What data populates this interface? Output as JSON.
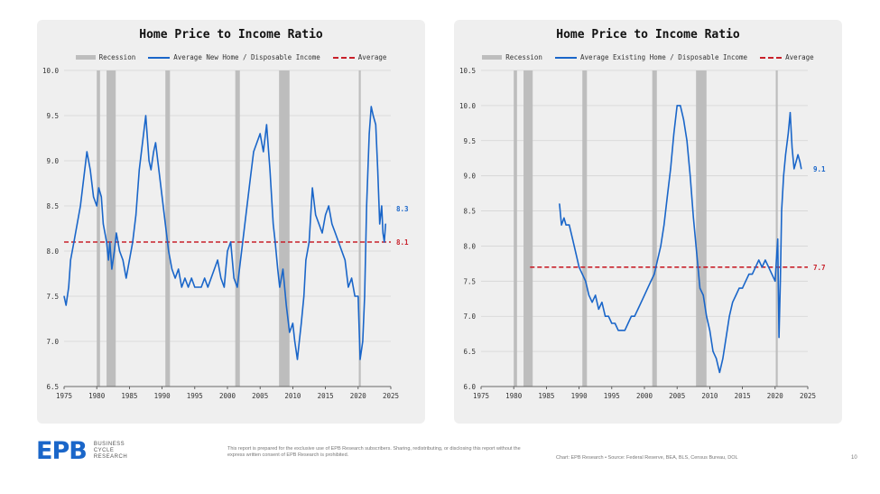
{
  "chart_data": [
    {
      "type": "line",
      "title": "Home Price to Income Ratio",
      "legend": [
        "Recession",
        "Average New Home / Disposable Income",
        "Average"
      ],
      "legend_placement": "top",
      "grid": true,
      "xlim": [
        1975,
        2025
      ],
      "ylim": [
        6.5,
        10.0
      ],
      "x_ticks": [
        "1975",
        "1980",
        "1985",
        "1990",
        "1995",
        "2000",
        "2005",
        "2010",
        "2015",
        "2020",
        "2025"
      ],
      "y_ticks": [
        "6.5",
        "7.0",
        "7.5",
        "8.0",
        "8.5",
        "9.0",
        "9.5",
        "10.0"
      ],
      "recessions": [
        [
          1980.0,
          1980.5
        ],
        [
          1981.5,
          1982.9
        ],
        [
          1990.5,
          1991.2
        ],
        [
          2001.2,
          2001.9
        ],
        [
          2007.9,
          2009.5
        ],
        [
          2020.1,
          2020.4
        ]
      ],
      "average": 8.1,
      "average_label": "8.1",
      "last_value_label": "8.3",
      "colors": {
        "series": "#1a66c9",
        "average": "#c8202a",
        "recession": "#bdbdbd"
      },
      "series": [
        {
          "name": "Average New Home / Disposable Income",
          "x": [
            1975.0,
            1975.3,
            1975.7,
            1976.0,
            1976.5,
            1977.0,
            1977.5,
            1978.0,
            1978.5,
            1979.0,
            1979.5,
            1980.0,
            1980.3,
            1980.7,
            1981.0,
            1981.5,
            1981.8,
            1982.0,
            1982.3,
            1982.7,
            1983.0,
            1983.5,
            1984.0,
            1984.5,
            1985.0,
            1985.5,
            1986.0,
            1986.5,
            1987.0,
            1987.5,
            1988.0,
            1988.3,
            1988.7,
            1989.0,
            1989.5,
            1990.0,
            1990.5,
            1991.0,
            1991.5,
            1992.0,
            1992.5,
            1993.0,
            1993.5,
            1994.0,
            1994.5,
            1995.0,
            1995.5,
            1996.0,
            1996.5,
            1997.0,
            1997.5,
            1998.0,
            1998.5,
            1999.0,
            1999.5,
            2000.0,
            2000.5,
            2001.0,
            2001.5,
            2002.0,
            2002.5,
            2003.0,
            2003.5,
            2004.0,
            2004.5,
            2005.0,
            2005.5,
            2006.0,
            2006.5,
            2007.0,
            2007.3,
            2007.7,
            2008.0,
            2008.5,
            2009.0,
            2009.5,
            2010.0,
            2010.3,
            2010.7,
            2011.0,
            2011.3,
            2011.7,
            2012.0,
            2012.5,
            2013.0,
            2013.5,
            2014.0,
            2014.5,
            2015.0,
            2015.5,
            2016.0,
            2016.5,
            2017.0,
            2017.5,
            2018.0,
            2018.5,
            2019.0,
            2019.5,
            2020.0,
            2020.3,
            2020.7,
            2021.0,
            2021.3,
            2021.7,
            2022.0,
            2022.3,
            2022.7,
            2023.0,
            2023.3,
            2023.6,
            2023.8,
            2024.0,
            2024.2
          ],
          "values": [
            7.5,
            7.4,
            7.6,
            7.9,
            8.1,
            8.3,
            8.5,
            8.8,
            9.1,
            8.9,
            8.6,
            8.5,
            8.7,
            8.6,
            8.3,
            8.1,
            7.9,
            8.1,
            7.8,
            8.0,
            8.2,
            8.0,
            7.9,
            7.7,
            7.9,
            8.1,
            8.4,
            8.9,
            9.2,
            9.5,
            9.0,
            8.9,
            9.1,
            9.2,
            8.9,
            8.6,
            8.3,
            8.0,
            7.8,
            7.7,
            7.8,
            7.6,
            7.7,
            7.6,
            7.7,
            7.6,
            7.6,
            7.6,
            7.7,
            7.6,
            7.7,
            7.8,
            7.9,
            7.7,
            7.6,
            8.0,
            8.1,
            7.7,
            7.6,
            7.9,
            8.2,
            8.5,
            8.8,
            9.1,
            9.2,
            9.3,
            9.1,
            9.4,
            8.9,
            8.3,
            8.1,
            7.8,
            7.6,
            7.8,
            7.4,
            7.1,
            7.2,
            7.0,
            6.8,
            7.0,
            7.2,
            7.5,
            7.9,
            8.1,
            8.7,
            8.4,
            8.3,
            8.2,
            8.4,
            8.5,
            8.3,
            8.2,
            8.1,
            8.0,
            7.9,
            7.6,
            7.7,
            7.5,
            7.5,
            6.8,
            7.0,
            7.5,
            8.5,
            9.3,
            9.6,
            9.5,
            9.4,
            8.9,
            8.3,
            8.5,
            8.2,
            8.1,
            8.3
          ]
        }
      ]
    },
    {
      "type": "line",
      "title": "Home Price to Income Ratio",
      "legend": [
        "Recession",
        "Average Existing Home / Disposable Income",
        "Average"
      ],
      "legend_placement": "top",
      "grid": true,
      "xlim": [
        1975,
        2025
      ],
      "ylim": [
        6.0,
        10.5
      ],
      "x_ticks": [
        "1975",
        "1980",
        "1985",
        "1990",
        "1995",
        "2000",
        "2005",
        "2010",
        "2015",
        "2020",
        "2025"
      ],
      "y_ticks": [
        "6.0",
        "6.5",
        "7.0",
        "7.5",
        "8.0",
        "8.5",
        "9.0",
        "9.5",
        "10.0",
        "10.5"
      ],
      "recessions": [
        [
          1980.0,
          1980.5
        ],
        [
          1981.5,
          1982.9
        ],
        [
          1990.5,
          1991.2
        ],
        [
          2001.2,
          2001.9
        ],
        [
          2007.9,
          2009.5
        ],
        [
          2020.1,
          2020.4
        ]
      ],
      "average": 7.7,
      "average_label": "7.7",
      "average_start": 1982.5,
      "last_value_label": "9.1",
      "colors": {
        "series": "#1a66c9",
        "average": "#c8202a",
        "recession": "#bdbdbd"
      },
      "series": [
        {
          "name": "Average Existing Home / Disposable Income",
          "x": [
            1987.0,
            1987.3,
            1987.7,
            1988.0,
            1988.5,
            1989.0,
            1989.5,
            1990.0,
            1990.5,
            1991.0,
            1991.5,
            1992.0,
            1992.5,
            1993.0,
            1993.5,
            1994.0,
            1994.5,
            1995.0,
            1995.5,
            1996.0,
            1996.5,
            1997.0,
            1997.5,
            1998.0,
            1998.5,
            1999.0,
            1999.5,
            2000.0,
            2000.5,
            2001.0,
            2001.5,
            2002.0,
            2002.5,
            2003.0,
            2003.5,
            2004.0,
            2004.5,
            2005.0,
            2005.5,
            2006.0,
            2006.5,
            2007.0,
            2007.5,
            2008.0,
            2008.5,
            2009.0,
            2009.5,
            2010.0,
            2010.5,
            2011.0,
            2011.5,
            2012.0,
            2012.5,
            2013.0,
            2013.5,
            2014.0,
            2014.5,
            2015.0,
            2015.5,
            2016.0,
            2016.5,
            2017.0,
            2017.5,
            2018.0,
            2018.5,
            2019.0,
            2019.5,
            2020.0,
            2020.2,
            2020.4,
            2020.6,
            2020.8,
            2021.0,
            2021.3,
            2021.6,
            2022.0,
            2022.3,
            2022.6,
            2022.9,
            2023.2,
            2023.5,
            2023.8,
            2024.0
          ],
          "values": [
            8.6,
            8.3,
            8.4,
            8.3,
            8.3,
            8.1,
            7.9,
            7.7,
            7.6,
            7.5,
            7.3,
            7.2,
            7.3,
            7.1,
            7.2,
            7.0,
            7.0,
            6.9,
            6.9,
            6.8,
            6.8,
            6.8,
            6.9,
            7.0,
            7.0,
            7.1,
            7.2,
            7.3,
            7.4,
            7.5,
            7.6,
            7.8,
            8.0,
            8.3,
            8.7,
            9.1,
            9.6,
            10.0,
            10.0,
            9.8,
            9.5,
            9.0,
            8.4,
            7.9,
            7.4,
            7.3,
            7.0,
            6.8,
            6.5,
            6.4,
            6.2,
            6.4,
            6.7,
            7.0,
            7.2,
            7.3,
            7.4,
            7.4,
            7.5,
            7.6,
            7.6,
            7.7,
            7.8,
            7.7,
            7.8,
            7.7,
            7.6,
            7.5,
            7.8,
            8.1,
            6.7,
            7.5,
            8.5,
            9.0,
            9.3,
            9.6,
            9.9,
            9.4,
            9.1,
            9.2,
            9.3,
            9.2,
            9.1
          ]
        }
      ]
    }
  ],
  "footer": {
    "logo_text": "EPB",
    "logo_sub": [
      "BUSINESS",
      "CYCLE",
      "RESEARCH"
    ],
    "disclaimer": "This report is prepared for the exclusive use of EPB Research subscribers. Sharing, redistributing, or disclosing this report without the express written consent of EPB Research is prohibited.",
    "source": "Chart: EPB Research  •  Source: Federal Reserve, BEA, BLS, Census Bureau, DOL",
    "page": "10"
  }
}
